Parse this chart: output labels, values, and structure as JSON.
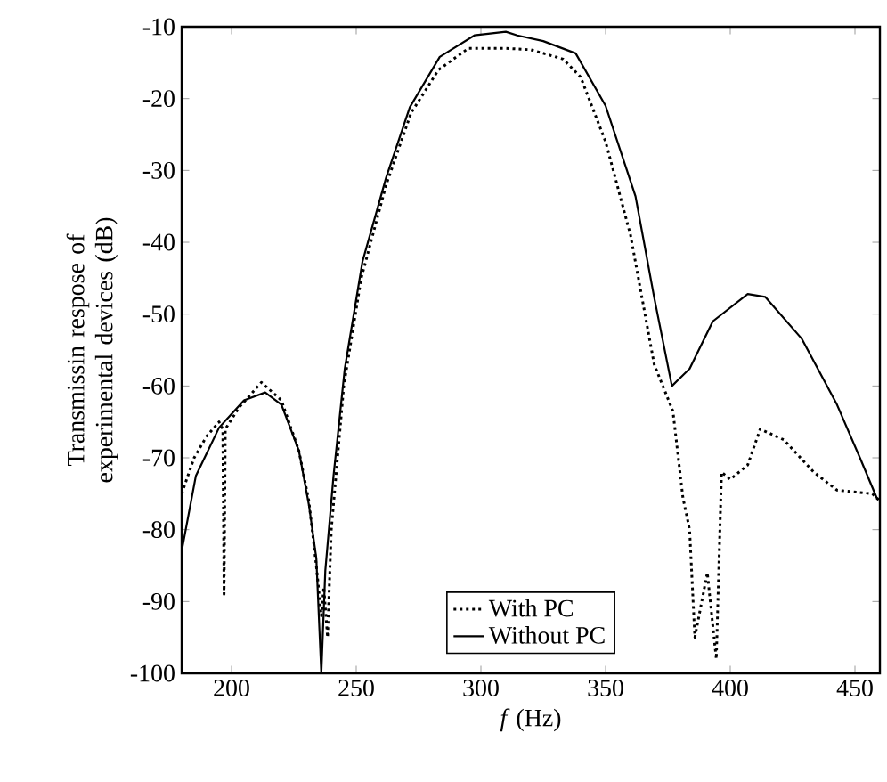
{
  "chart_data": {
    "type": "line",
    "xlabel": "*f* (Hz)",
    "ylabel": "Transmissin respose of experimental devices (dB)",
    "xlim": [
      180,
      460
    ],
    "ylim": [
      -100,
      -10
    ],
    "xticks": [
      200,
      250,
      300,
      350,
      400,
      450
    ],
    "yticks": [
      -100,
      -90,
      -80,
      -70,
      -60,
      -50,
      -40,
      -30,
      -20,
      -10
    ],
    "grid": false,
    "legend": "bottom",
    "marker": "none",
    "series": [
      {
        "name": "With PC",
        "color": "#000000",
        "line_style": "dotted",
        "x": [
          180,
          185,
          190,
          195,
          196.5,
          197,
          197.5,
          203,
          212,
          220,
          227,
          231,
          234,
          236,
          237,
          238.5,
          240,
          245,
          252,
          262,
          272,
          283,
          295,
          310,
          320,
          333,
          340,
          350,
          360,
          369.5,
          377,
          381,
          383.7,
          385.8,
          390.8,
          394.4,
          396.5,
          400,
          407,
          412,
          421.5,
          433.5,
          442.8,
          457,
          460
        ],
        "values": [
          -75,
          -70,
          -67,
          -65,
          -66,
          -89,
          -66,
          -63,
          -59.5,
          -62,
          -69,
          -76,
          -85,
          -92,
          -88,
          -95,
          -80,
          -60,
          -45,
          -32,
          -22,
          -16,
          -13,
          -13,
          -13.2,
          -14.5,
          -17,
          -26,
          -39,
          -57,
          -63.5,
          -75.5,
          -80,
          -95,
          -86,
          -98,
          -72,
          -73,
          -71,
          -66,
          -67.5,
          -72,
          -74.5,
          -75,
          -76
        ]
      },
      {
        "name": "Without PC",
        "color": "#000000",
        "line_style": "solid",
        "x": [
          180,
          185.7,
          195,
          205,
          213.5,
          220,
          227,
          231,
          234,
          236,
          237.6,
          240.9,
          245.4,
          252.5,
          262,
          271.5,
          283.5,
          297.4,
          310,
          314.6,
          325,
          338,
          350,
          362,
          369.5,
          376.6,
          383.7,
          393,
          407,
          414,
          428.6,
          442.8,
          452,
          459
        ],
        "values": [
          -83,
          -72.5,
          -65.8,
          -62,
          -60.9,
          -62.6,
          -69,
          -76.5,
          -84,
          -100,
          -85.7,
          -72.5,
          -57.6,
          -42.7,
          -31,
          -21.2,
          -14.2,
          -11.2,
          -10.7,
          -11.2,
          -12,
          -13.7,
          -21,
          -33.6,
          -47.7,
          -60,
          -57.6,
          -51,
          -47.2,
          -47.6,
          -53.4,
          -62.6,
          -70,
          -75.8
        ]
      }
    ]
  }
}
